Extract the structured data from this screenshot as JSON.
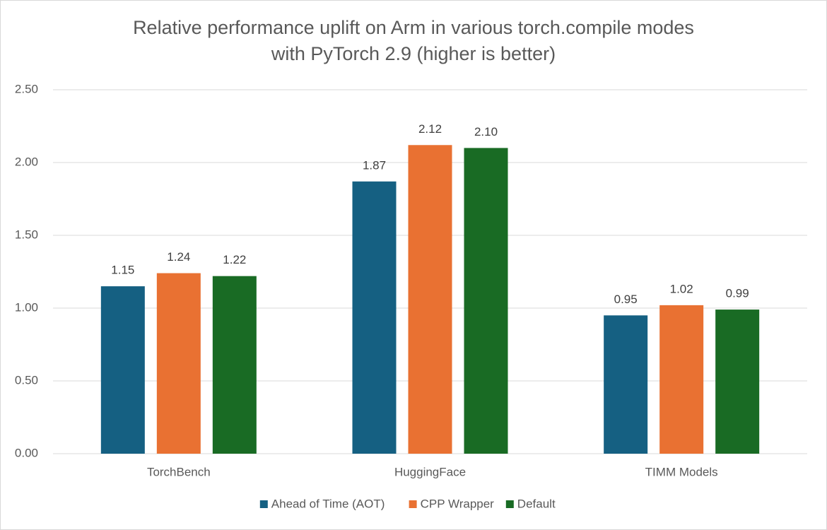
{
  "chart_data": {
    "type": "bar",
    "title": [
      "Relative performance uplift on Arm in various torch.compile modes",
      "with PyTorch 2.9 (higher is better)"
    ],
    "categories": [
      "TorchBench",
      "HuggingFace",
      "TIMM Models"
    ],
    "series": [
      {
        "name": "Ahead of Time (AOT)",
        "color": "#156082",
        "values": [
          1.15,
          1.87,
          0.95
        ],
        "value_labels": [
          "1.15",
          "1.87",
          "0.95"
        ]
      },
      {
        "name": "CPP Wrapper",
        "color": "#e97132",
        "values": [
          1.24,
          2.12,
          1.02
        ],
        "value_labels": [
          "1.24",
          "2.12",
          "1.02"
        ]
      },
      {
        "name": "Default",
        "color": "#196b24",
        "values": [
          1.22,
          2.1,
          0.99
        ],
        "value_labels": [
          "1.22",
          "2.10",
          "0.99"
        ]
      }
    ],
    "ylim": [
      0,
      2.5
    ],
    "yticks": [
      {
        "value": 0,
        "label": "0.00"
      },
      {
        "value": 0.5,
        "label": "0.50"
      },
      {
        "value": 1,
        "label": "1.00"
      },
      {
        "value": 1.5,
        "label": "1.50"
      },
      {
        "value": 2,
        "label": "2.00"
      },
      {
        "value": 2.5,
        "label": "2.50"
      }
    ],
    "grid": true,
    "legend": "bottom"
  }
}
